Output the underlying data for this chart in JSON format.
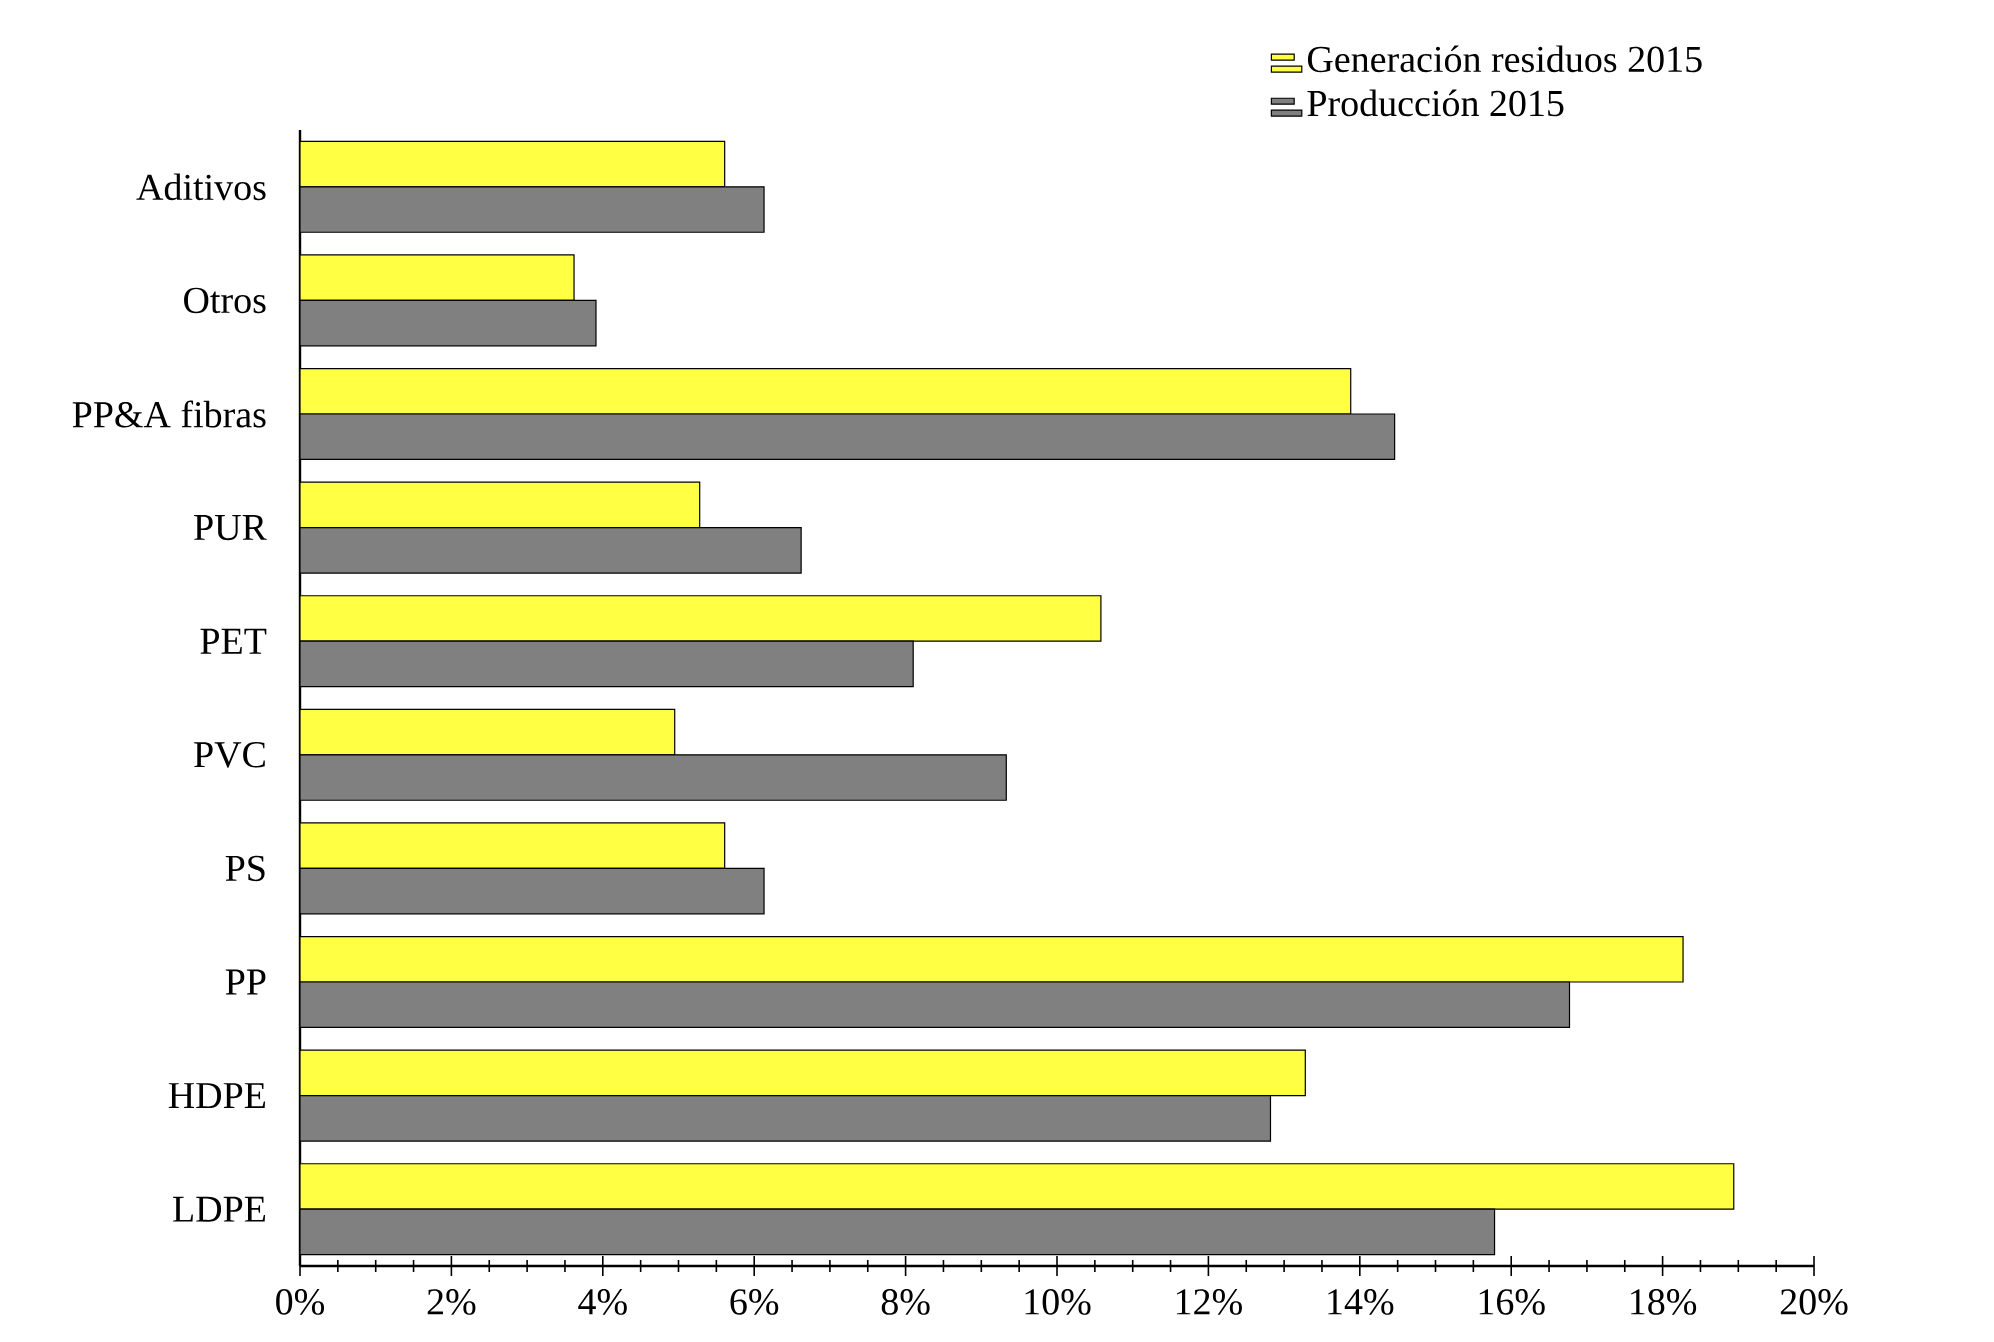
{
  "chart_data": {
    "type": "bar",
    "orientation": "horizontal",
    "categories": [
      "Aditivos",
      "Otros",
      "PP&A fibras",
      "PUR",
      "PET",
      "PVC",
      "PS",
      "PP",
      "HDPE",
      "LDPE"
    ],
    "series": [
      {
        "name": "Generación residuos 2015",
        "color": "#ffff44",
        "values": [
          5.61,
          3.62,
          13.88,
          5.28,
          10.58,
          4.95,
          5.61,
          18.27,
          13.28,
          18.94
        ]
      },
      {
        "name": "Producción 2015",
        "color": "#808080",
        "values": [
          6.13,
          3.91,
          14.46,
          6.62,
          8.1,
          9.33,
          6.13,
          16.77,
          12.82,
          15.78
        ]
      }
    ],
    "xlim": [
      0,
      20
    ],
    "xticks": [
      {
        "value": 0,
        "label": "0%"
      },
      {
        "value": 2,
        "label": "2%"
      },
      {
        "value": 4,
        "label": "4%"
      },
      {
        "value": 6,
        "label": "6%"
      },
      {
        "value": 8,
        "label": "8%"
      },
      {
        "value": 10,
        "label": "10%"
      },
      {
        "value": 12,
        "label": "12%"
      },
      {
        "value": 14,
        "label": "14%"
      },
      {
        "value": 16,
        "label": "16%"
      },
      {
        "value": 18,
        "label": "18%"
      },
      {
        "value": 20,
        "label": "20%"
      }
    ],
    "legend": "top right"
  }
}
